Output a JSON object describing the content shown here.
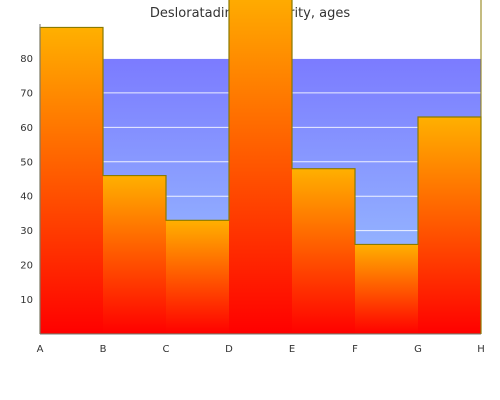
{
  "chart_data": {
    "type": "area",
    "title": "Desloratadine popularity, ages",
    "xlabel": "",
    "ylabel": "",
    "categories": [
      "A",
      "B",
      "C",
      "D",
      "E",
      "F",
      "G",
      "H"
    ],
    "ylim": [
      0,
      90
    ],
    "yticks": [
      10,
      20,
      30,
      40,
      50,
      60,
      70,
      80
    ],
    "grid": true,
    "legend": "none",
    "series": [
      {
        "values": [
          80,
          80,
          80,
          80,
          80,
          80,
          80,
          80
        ],
        "colors": {
          "top": "#7b7bff",
          "bottom": "#9ecbff"
        }
      },
      {
        "values": [
          89,
          46,
          33,
          100,
          48,
          26,
          63,
          63
        ],
        "colors": {
          "top": "#ffb000",
          "bottom": "#ff0000",
          "stroke": "#8a7a00"
        }
      }
    ]
  }
}
